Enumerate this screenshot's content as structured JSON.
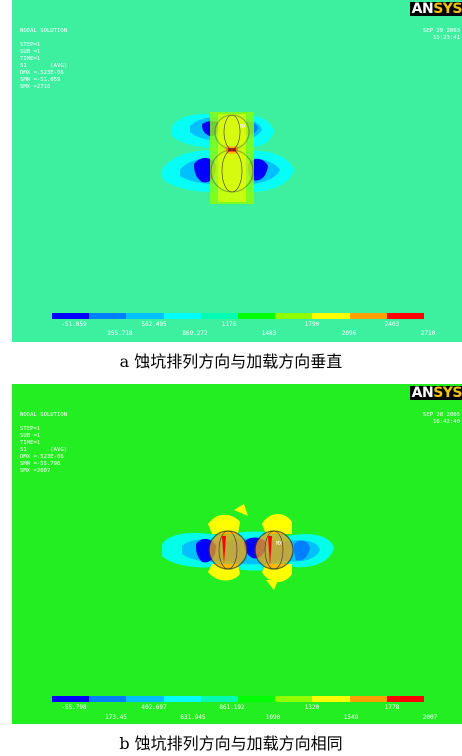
{
  "legend_colors": [
    "#0000ff",
    "#0080ff",
    "#00c0ff",
    "#00ffff",
    "#00ffb0",
    "#00ff00",
    "#90ff00",
    "#ffff00",
    "#ffa000",
    "#ff0000"
  ],
  "panels": [
    {
      "info_lines": [
        "NODAL SOLUTION",
        "",
        "STEP=1",
        "SUB =1",
        "TIME=1",
        "S1       (AVG)",
        "DMX =.523E-06",
        "SMN =-51.059",
        "SMX =2710"
      ],
      "date": "SEP 29 2003",
      "time": "15:23:41",
      "logo_an": "AN",
      "logo_sys": "SYS",
      "node_label": "MX",
      "legend_top": [
        "-51.059",
        "562.495",
        "1176",
        "1790",
        "2403"
      ],
      "legend_bottom": [
        "255.718",
        "869.272",
        "1483",
        "2096",
        "2710"
      ],
      "caption": "a 蚀坑排列方向与加载方向垂直",
      "background": "#3cf0a0"
    },
    {
      "info_lines": [
        "NODAL SOLUTION",
        "",
        "STEP=1",
        "SUB =1",
        "TIME=1",
        "S1       (AVG)",
        "DMX =.523E-06",
        "SMN =-55.798",
        "SMX =2007"
      ],
      "date": "SEP 28 2005",
      "time": "16:42:40",
      "logo_an": "AN",
      "logo_sys": "SYS",
      "node_label": "MX",
      "legend_top": [
        "-55.798",
        "402.697",
        "861.192",
        "1320",
        "1778"
      ],
      "legend_bottom": [
        "173.45",
        "631.945",
        "1090",
        "1549",
        "2007"
      ],
      "caption": "b 蚀坑排列方向与加载方向相同",
      "background": "#22ee22"
    }
  ]
}
